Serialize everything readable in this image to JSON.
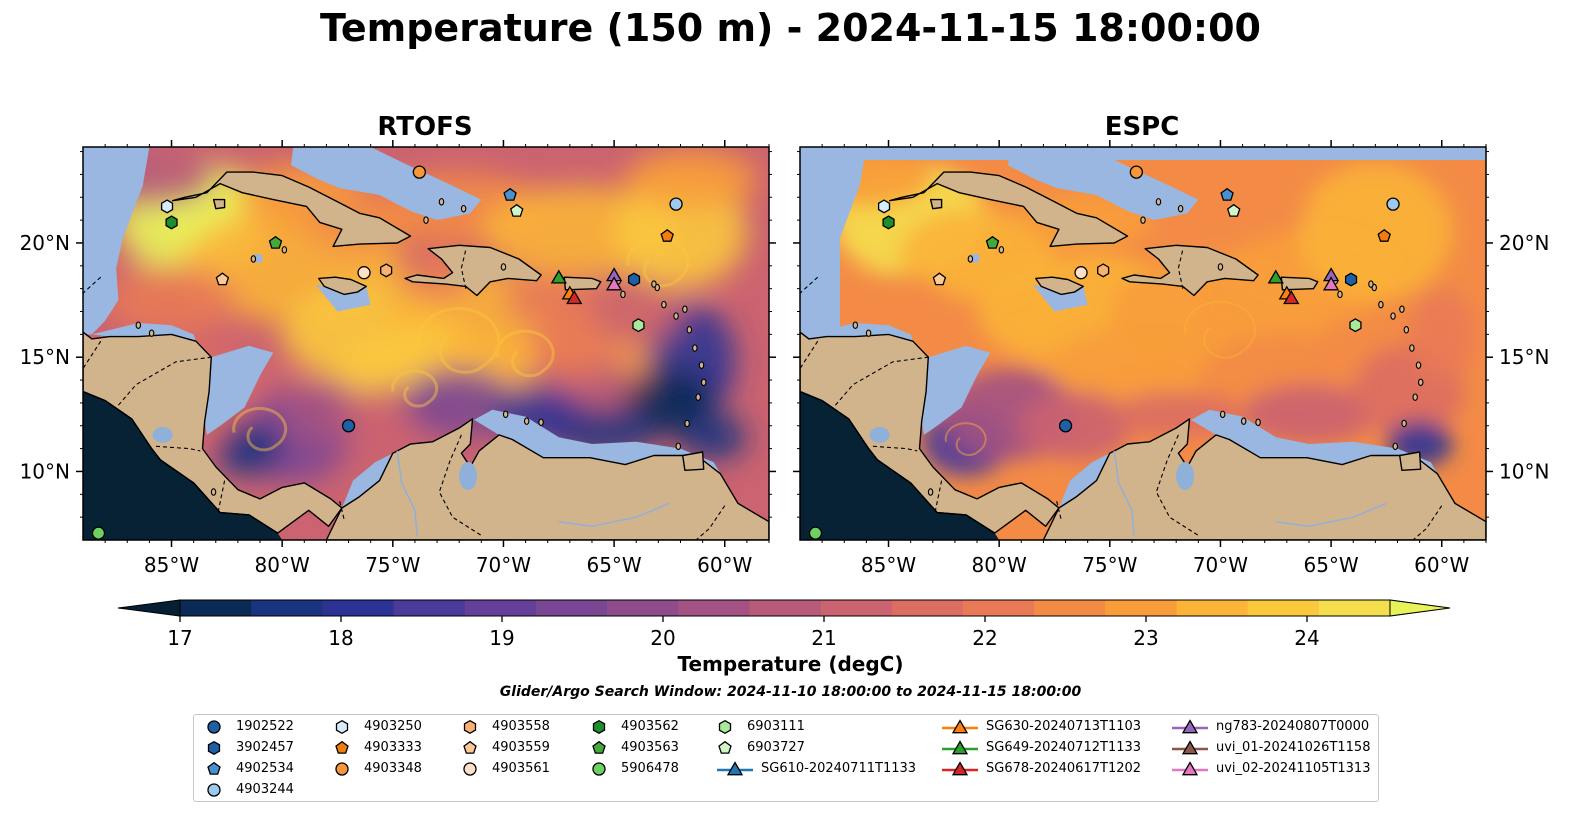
{
  "title": "Temperature (150 m) - 2024-11-15 18:00:00",
  "panels": [
    {
      "title": "RTOFS"
    },
    {
      "title": "ESPC"
    }
  ],
  "lat_ticks": [
    "10°N",
    "15°N",
    "20°N"
  ],
  "lon_ticks": [
    "85°W",
    "80°W",
    "75°W",
    "70°W",
    "65°W",
    "60°W"
  ],
  "colorbar": {
    "label": "Temperature (degC)",
    "ticks": [
      "17",
      "18",
      "19",
      "20",
      "21",
      "22",
      "23",
      "24"
    ],
    "colors": [
      "#071f35",
      "#0b2a55",
      "#1b3480",
      "#2d3394",
      "#4a3a9a",
      "#65409a",
      "#7a4794",
      "#8f4c8c",
      "#a45283",
      "#b85a7a",
      "#cb6370",
      "#dc6d63",
      "#e97a55",
      "#f38b46",
      "#f89d3a",
      "#fbb338",
      "#fbc83d",
      "#f5de4d",
      "#e8f25a"
    ]
  },
  "search_window": "Glider/Argo Search Window: 2024-11-10 18:00:00 to 2024-11-15 18:00:00",
  "legend": [
    {
      "label": "1902522",
      "marker": "circle",
      "color": "#1f5fa6"
    },
    {
      "label": "3902457",
      "marker": "hexagon",
      "color": "#1f5fa6"
    },
    {
      "label": "4902534",
      "marker": "pentagon",
      "color": "#4a90d0"
    },
    {
      "label": "4903244",
      "marker": "circle",
      "color": "#9ec9ee"
    },
    {
      "label": "4903250",
      "marker": "hexagon",
      "color": "#d6ebfb"
    },
    {
      "label": "4903333",
      "marker": "pentagon",
      "color": "#f07d10"
    },
    {
      "label": "4903348",
      "marker": "circle",
      "color": "#f7973a"
    },
    {
      "label": "4903558",
      "marker": "hexagon",
      "color": "#fbb073"
    },
    {
      "label": "4903559",
      "marker": "pentagon",
      "color": "#fcc898"
    },
    {
      "label": "4903561",
      "marker": "circle",
      "color": "#fde0c8"
    },
    {
      "label": "4903562",
      "marker": "hexagon",
      "color": "#1e8f2a"
    },
    {
      "label": "4903563",
      "marker": "pentagon",
      "color": "#45a83a"
    },
    {
      "label": "5906478",
      "marker": "circle",
      "color": "#6cd063"
    },
    {
      "label": "6903111",
      "marker": "hexagon",
      "color": "#a8e99b"
    },
    {
      "label": "6903727",
      "marker": "pentagon",
      "color": "#d2f5c8"
    },
    {
      "label": "SG610-20240711T1133",
      "marker": "triangle",
      "color": "#1f77b4"
    },
    {
      "label": "SG630-20240713T1103",
      "marker": "triangle",
      "color": "#ff7f0e"
    },
    {
      "label": "SG649-20240712T1133",
      "marker": "triangle",
      "color": "#2ca02c"
    },
    {
      "label": "SG678-20240617T1202",
      "marker": "triangle",
      "color": "#d62728"
    },
    {
      "label": "ng783-20240807T0000",
      "marker": "triangle",
      "color": "#9467bd"
    },
    {
      "label": "uvi_01-20241026T1158",
      "marker": "triangle",
      "color": "#8c564b"
    },
    {
      "label": "uvi_02-20241105T1313",
      "marker": "triangle",
      "color": "#e377c2"
    }
  ],
  "markers": [
    {
      "id": "4903250",
      "lon": -85.2,
      "lat": 21.6
    },
    {
      "id": "4903562",
      "lon": -85.0,
      "lat": 20.9
    },
    {
      "id": "4903563",
      "lon": -80.3,
      "lat": 20.0
    },
    {
      "id": "4903559",
      "lon": -82.7,
      "lat": 18.4
    },
    {
      "id": "4903348",
      "lon": -73.8,
      "lat": 23.1
    },
    {
      "id": "4902534",
      "lon": -69.7,
      "lat": 22.1
    },
    {
      "id": "6903727",
      "lon": -69.4,
      "lat": 21.4
    },
    {
      "id": "4903561",
      "lon": -76.3,
      "lat": 18.7
    },
    {
      "id": "4903558",
      "lon": -75.3,
      "lat": 18.8
    },
    {
      "id": "4903244",
      "lon": -62.2,
      "lat": 21.7
    },
    {
      "id": "4903333",
      "lon": -62.6,
      "lat": 20.3
    },
    {
      "id": "3902457",
      "lon": -64.1,
      "lat": 18.4
    },
    {
      "id": "6903111",
      "lon": -63.9,
      "lat": 16.4
    },
    {
      "id": "1902522",
      "lon": -77.0,
      "lat": 12.0
    },
    {
      "id": "5906478",
      "lon": -88.3,
      "lat": 7.3
    },
    {
      "id": "SG649-20240712T1133",
      "lon": -67.5,
      "lat": 18.5
    },
    {
      "id": "SG630-20240713T1103",
      "lon": -67.0,
      "lat": 17.8
    },
    {
      "id": "SG678-20240617T1202",
      "lon": -66.8,
      "lat": 17.6
    },
    {
      "id": "ng783-20240807T0000",
      "lon": -65.0,
      "lat": 18.6
    },
    {
      "id": "uvi_02-20241105T1313",
      "lon": -65.0,
      "lat": 18.2
    }
  ]
}
